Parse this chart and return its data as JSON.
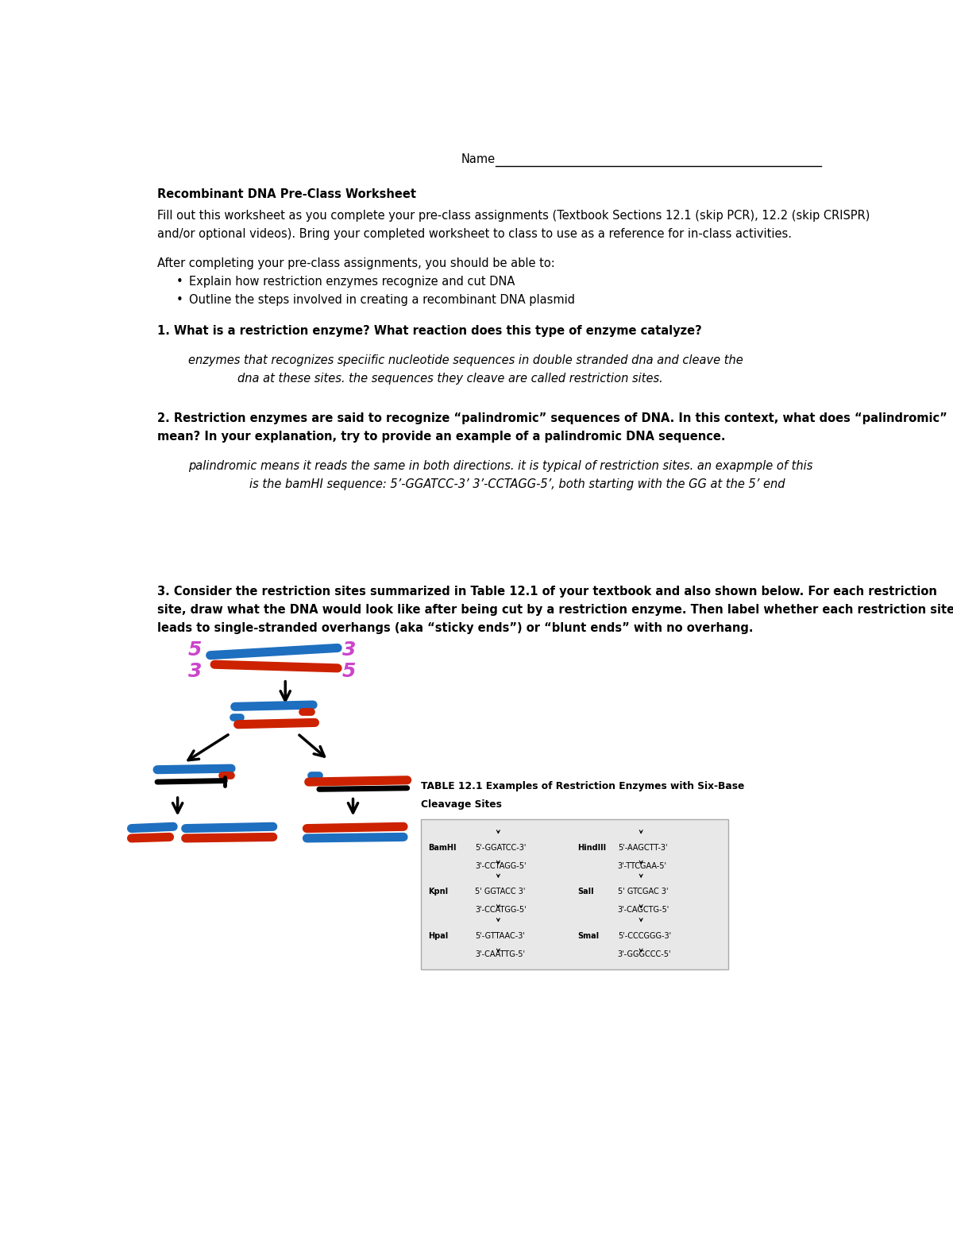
{
  "bg_color": "#ffffff",
  "page_width": 12.0,
  "page_height": 15.53,
  "blue": "#1E6FBF",
  "red": "#CC2200",
  "purple": "#CC44CC",
  "black": "#000000",
  "title": "Recombinant DNA Pre-Class Worksheet",
  "intro1": "Fill out this worksheet as you complete your pre-class assignments (Textbook Sections 12.1 (skip PCR), 12.2 (skip CRISPR)",
  "intro2": "and/or optional videos). Bring your completed worksheet to class to use as a reference for in-class activities.",
  "obj_header": "After completing your pre-class assignments, you should be able to:",
  "obj1": "Explain how restriction enzymes recognize and cut DNA",
  "obj2": "Outline the steps involved in creating a recombinant DNA plasmid",
  "q1": "1. What is a restriction enzyme? What reaction does this type of enzyme catalyze?",
  "a1_1": "enzymes that recognizes speciific nucleotide sequences in double stranded dna and cleave the",
  "a1_2": "dna at these sites. the sequences they cleave are called restriction sites.",
  "q2_1": "2. Restriction enzymes are said to recognize “palindromic” sequences of DNA. In this context, what does “palindromic”",
  "q2_2": "mean? In your explanation, try to provide an example of a palindromic DNA sequence.",
  "a2_1": "palindromic means it reads the same in both directions. it is typical of restriction sites. an exapmple of this",
  "a2_2": "is the bamHI sequence: 5’-GGATCC-3’ 3’-CCTAGG-5’, both starting with the GG at the 5’ end",
  "q3_1": "3. Consider the restriction sites summarized in Table 12.1 of your textbook and also shown below. For each restriction",
  "q3_2": "site, draw what the DNA would look like after being cut by a restriction enzyme. Then label whether each restriction site",
  "q3_3": "leads to single-stranded overhangs (aka “sticky ends”) or “blunt ends” with no overhang.",
  "table_title1": "TABLE 12.1 Examples of Restriction Enzymes with Six-Base",
  "table_title2": "Cleavage Sites"
}
